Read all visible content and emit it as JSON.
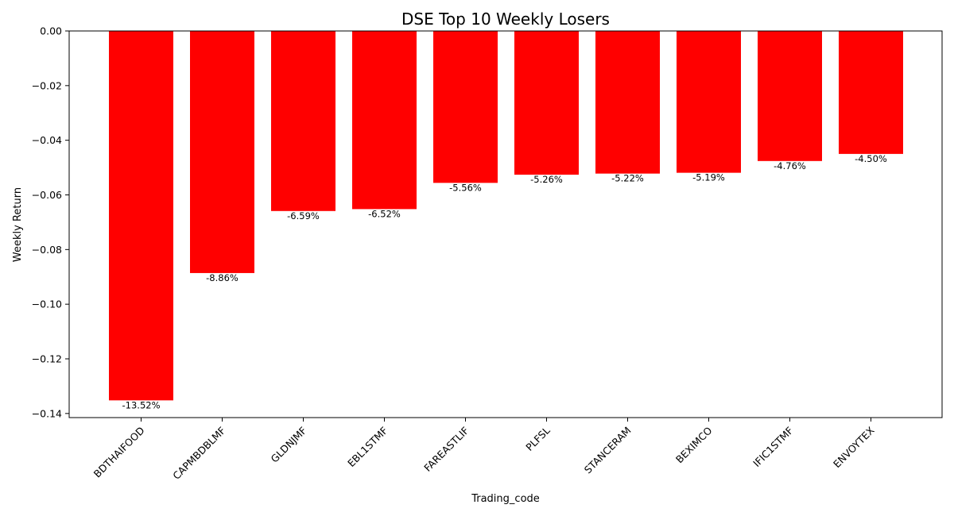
{
  "chart_data": {
    "type": "bar",
    "title": "DSE Top 10 Weekly Losers",
    "xlabel": "Trading_code",
    "ylabel": "Weekly Return",
    "categories": [
      "BDTHAIFOOD",
      "CAPMBDBLMF",
      "GLDNJMF",
      "EBL1STMF",
      "FAREASTLIF",
      "PLFSL",
      "STANCERAM",
      "BEXIMCO",
      "IFIC1STMF",
      "ENVOYTEX"
    ],
    "values": [
      -0.1352,
      -0.0886,
      -0.0659,
      -0.0652,
      -0.0556,
      -0.0526,
      -0.0522,
      -0.0519,
      -0.0476,
      -0.045
    ],
    "data_labels": [
      "-13.52%",
      "-8.86%",
      "-6.59%",
      "-6.52%",
      "-5.56%",
      "-5.26%",
      "-5.22%",
      "-5.19%",
      "-4.76%",
      "-4.50%"
    ],
    "ylim": [
      -0.1415,
      0.0
    ],
    "yticks": [
      0.0,
      -0.02,
      -0.04,
      -0.06,
      -0.08,
      -0.1,
      -0.12,
      -0.14
    ],
    "ytick_labels": [
      "0.00",
      "−0.02",
      "−0.04",
      "−0.06",
      "−0.08",
      "−0.10",
      "−0.12",
      "−0.14"
    ],
    "bar_color": "#ff0000",
    "grid": false,
    "legend": "none"
  }
}
